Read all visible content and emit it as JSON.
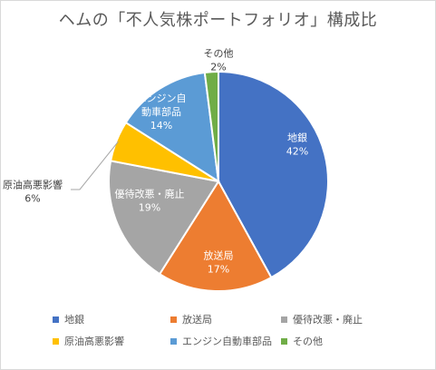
{
  "chart_data": {
    "type": "pie",
    "title": "ヘムの「不人気株ポートフォリオ」構成比",
    "categories": [
      "地銀",
      "放送局",
      "優待改悪・廃止",
      "原油高悪影響",
      "エンジン自動車部品",
      "その他"
    ],
    "values": [
      42,
      17,
      19,
      6,
      14,
      2
    ],
    "labels": [
      "42%",
      "17%",
      "19%",
      "6%",
      "14%",
      "2%"
    ],
    "colors": [
      "#4472c4",
      "#ed7d31",
      "#a5a5a5",
      "#ffc000",
      "#5b9bd5",
      "#70ad47"
    ],
    "legend_position": "bottom",
    "start_angle_deg": 0,
    "direction": "clockwise"
  }
}
